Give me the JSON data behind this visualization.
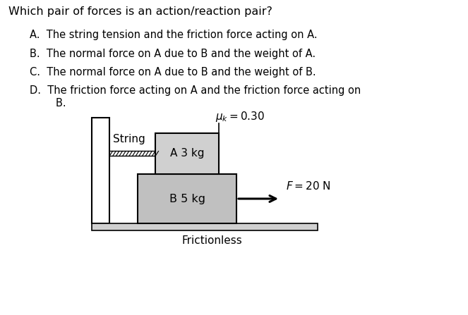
{
  "title": "Which pair of forces is an action/reaction pair?",
  "options": [
    "A.  The string tension and the friction force acting on A.",
    "B.  The normal force on A due to B and the weight of A.",
    "C.  The normal force on A due to B and the weight of B.",
    "D.  The friction force acting on A and the friction force acting on\n        B."
  ],
  "mu_label": "$\\mu_k = 0.30$",
  "block_A_label": "A 3 kg",
  "block_B_label": "B 5 kg",
  "force_label": "$F = 20$ N",
  "string_label": "String",
  "floor_label": "Frictionless",
  "bg_color": "#ffffff",
  "wall_color": "#ffffff",
  "block_A_color": "#d0d0d0",
  "block_B_color": "#c0c0c0",
  "floor_color": "#d0d0d0",
  "text_color": "#000000"
}
